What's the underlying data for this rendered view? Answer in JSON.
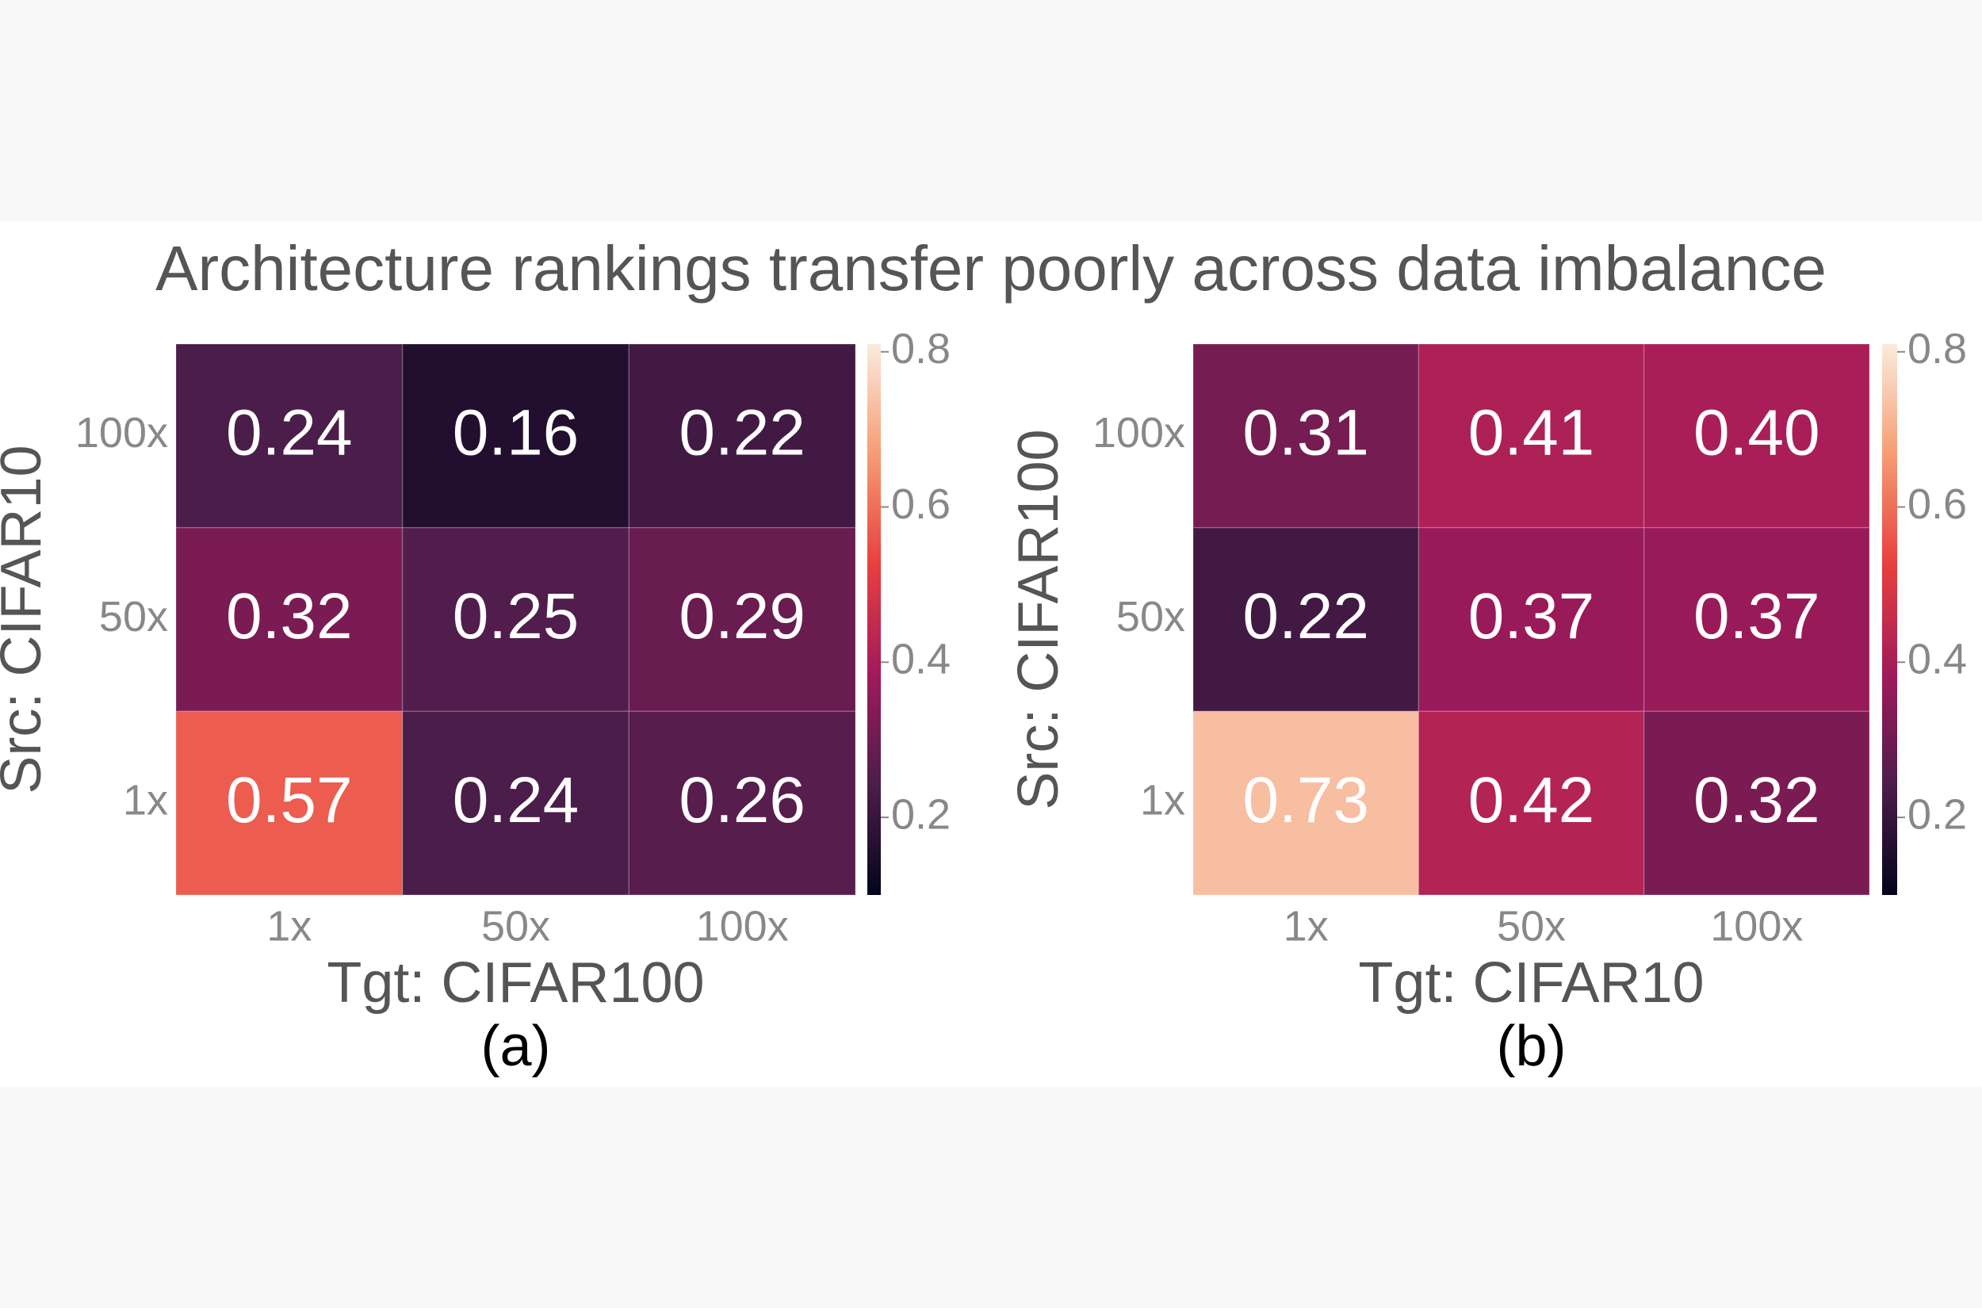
{
  "title": "Architecture rankings transfer poorly across data imbalance",
  "chart_data": [
    {
      "type": "heatmap",
      "xlabel": "Tgt: CIFAR100",
      "ylabel": "Src: CIFAR10",
      "caption": "(a)",
      "x_categories": [
        "1x",
        "50x",
        "100x"
      ],
      "y_categories": [
        "100x",
        "50x",
        "1x"
      ],
      "values": [
        [
          0.24,
          0.16,
          0.22
        ],
        [
          0.32,
          0.25,
          0.29
        ],
        [
          0.57,
          0.24,
          0.26
        ]
      ],
      "value_labels": [
        [
          "0.24",
          "0.16",
          "0.22"
        ],
        [
          "0.32",
          "0.25",
          "0.29"
        ],
        [
          "0.57",
          "0.24",
          "0.26"
        ]
      ],
      "clim": [
        0.1,
        0.81
      ],
      "cticks": [
        0.2,
        0.4,
        0.6,
        0.8
      ],
      "colormap": [
        "#03051a",
        "#4c1d4b",
        "#a11a5b",
        "#e83f3f",
        "#f69c73",
        "#faebdd"
      ]
    },
    {
      "type": "heatmap",
      "xlabel": "Tgt: CIFAR10",
      "ylabel": "Src: CIFAR100",
      "caption": "(b)",
      "x_categories": [
        "1x",
        "50x",
        "100x"
      ],
      "y_categories": [
        "100x",
        "50x",
        "1x"
      ],
      "values": [
        [
          0.31,
          0.41,
          0.4
        ],
        [
          0.22,
          0.37,
          0.37
        ],
        [
          0.73,
          0.42,
          0.32
        ]
      ],
      "value_labels": [
        [
          "0.31",
          "0.41",
          "0.40"
        ],
        [
          "0.22",
          "0.37",
          "0.37"
        ],
        [
          "0.73",
          "0.42",
          "0.32"
        ]
      ],
      "clim": [
        0.1,
        0.81
      ],
      "cticks": [
        0.2,
        0.4,
        0.6,
        0.8
      ],
      "colormap": [
        "#03051a",
        "#4c1d4b",
        "#a11a5b",
        "#e83f3f",
        "#f69c73",
        "#faebdd"
      ]
    }
  ]
}
